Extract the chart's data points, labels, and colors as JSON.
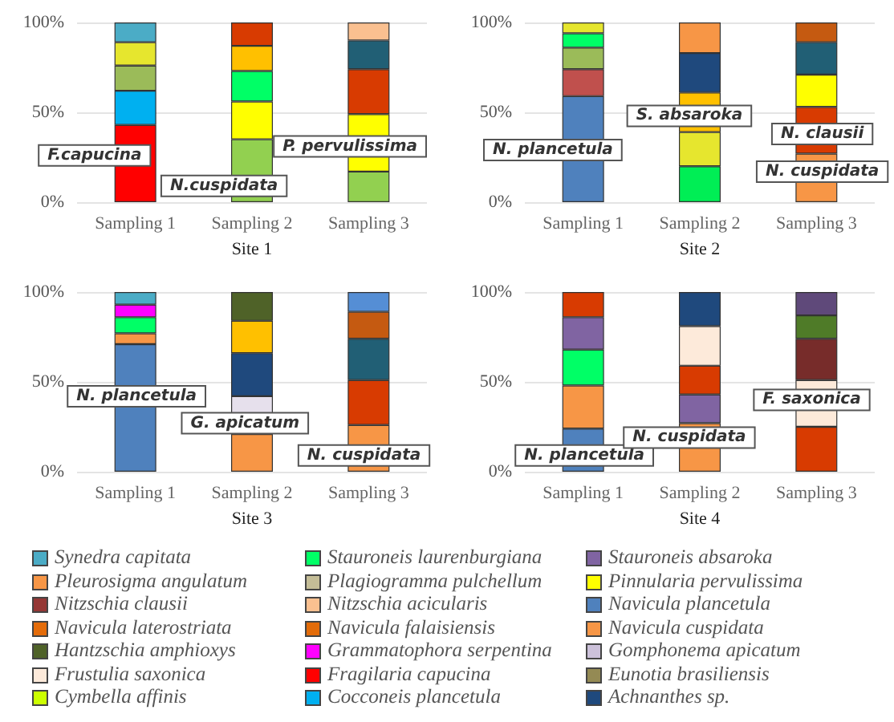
{
  "chart_data": [
    {
      "type": "bar",
      "stacked": true,
      "xlabel": "Site 1",
      "categories": [
        "Sampling 1",
        "Sampling 2",
        "Sampling 3"
      ],
      "ylim": [
        0,
        100
      ],
      "yticks": [
        {
          "value": 0,
          "label": "0%"
        },
        {
          "value": 50,
          "label": "50%"
        },
        {
          "value": 100,
          "label": "100%"
        }
      ],
      "grid": "y",
      "series": [
        {
          "colors": [
            "#ff0000",
            "#92d050",
            "#92d050"
          ],
          "values": [
            43,
            35,
            17
          ]
        },
        {
          "colors": [
            "#00b0f0",
            "#ffff00",
            "#ffff00"
          ],
          "values": [
            19,
            21,
            32
          ]
        },
        {
          "colors": [
            "#9bbb59",
            "#00ff66",
            "#d83b01"
          ],
          "values": [
            14,
            17,
            25
          ]
        },
        {
          "colors": [
            "#e6e62e",
            "#ffc000",
            "#215f75"
          ],
          "values": [
            13,
            14,
            16
          ]
        },
        {
          "colors": [
            "#4bacc6",
            "#d83b01",
            "#fac090"
          ],
          "values": [
            11,
            13,
            10
          ]
        }
      ],
      "annotations": [
        "F.capucina",
        "N.cuspidata",
        "P. pervulissima"
      ]
    },
    {
      "type": "bar",
      "stacked": true,
      "xlabel": "Site 2",
      "categories": [
        "Sampling 1",
        "Sampling 2",
        "Sampling 3"
      ],
      "ylim": [
        0,
        100
      ],
      "yticks": [
        {
          "value": 0,
          "label": "0%"
        },
        {
          "value": 50,
          "label": "50%"
        },
        {
          "value": 100,
          "label": "100%"
        }
      ],
      "grid": "y",
      "series": [
        {
          "colors": [
            "#4f81bd",
            "#00ee55",
            "#f79646"
          ],
          "values": [
            59,
            20,
            27
          ]
        },
        {
          "colors": [
            "#c0504d",
            "#e6e62e",
            "#d83b01"
          ],
          "values": [
            15,
            19,
            26
          ]
        },
        {
          "colors": [
            "#9bbb59",
            "#ffc000",
            "#ffff00"
          ],
          "values": [
            12,
            22,
            18
          ]
        },
        {
          "colors": [
            "#00ff66",
            "#1f497d",
            "#215f75"
          ],
          "values": [
            8,
            22,
            18
          ]
        },
        {
          "colors": [
            "#e6e62e",
            "#f79646",
            "#c55a11"
          ],
          "values": [
            6,
            17,
            11
          ]
        }
      ],
      "annotations": [
        "N. plancetula",
        "S. absaroka",
        "N. clausii",
        "N. cuspidata"
      ]
    },
    {
      "type": "bar",
      "stacked": true,
      "xlabel": "Site 3",
      "categories": [
        "Sampling 1",
        "Sampling 2",
        "Sampling 3"
      ],
      "ylim": [
        0,
        100
      ],
      "yticks": [
        {
          "value": 0,
          "label": "0%"
        },
        {
          "value": 50,
          "label": "50%"
        },
        {
          "value": 100,
          "label": "100%"
        }
      ],
      "grid": "y",
      "series": [
        {
          "colors": [
            "#4f81bd",
            "#f79646",
            "#f79646"
          ],
          "values": [
            71,
            21,
            26
          ]
        },
        {
          "colors": [
            "#f79646",
            "#e6e0ec",
            "#d83b01"
          ],
          "values": [
            6,
            21,
            25
          ]
        },
        {
          "colors": [
            "#00ff66",
            "#1f497d",
            "#215f75"
          ],
          "values": [
            9,
            24,
            23
          ]
        },
        {
          "colors": [
            "#ff00ff",
            "#ffc000",
            "#c55a11"
          ],
          "values": [
            7,
            18,
            15
          ]
        },
        {
          "colors": [
            "#4bacc6",
            "#4f6228",
            "#558ed5"
          ],
          "values": [
            7,
            16,
            11
          ]
        }
      ],
      "annotations": [
        "N. plancetula",
        "G. apicatum",
        "N. cuspidata"
      ]
    },
    {
      "type": "bar",
      "stacked": true,
      "xlabel": "Site 4",
      "categories": [
        "Sampling 1",
        "Sampling 2",
        "Sampling 3"
      ],
      "ylim": [
        0,
        100
      ],
      "yticks": [
        {
          "value": 0,
          "label": "0%"
        },
        {
          "value": 50,
          "label": "50%"
        },
        {
          "value": 100,
          "label": "100%"
        }
      ],
      "grid": "y",
      "series": [
        {
          "colors": [
            "#4f81bd",
            "#f79646",
            "#d83b01"
          ],
          "values": [
            24,
            27,
            25
          ]
        },
        {
          "colors": [
            "#f79646",
            "#8064a2",
            "#fdeada"
          ],
          "values": [
            24,
            16,
            26
          ]
        },
        {
          "colors": [
            "#00ff66",
            "#d83b01",
            "#772c2a"
          ],
          "values": [
            20,
            16,
            23
          ]
        },
        {
          "colors": [
            "#8064a2",
            "#fdeada",
            "#4f7b28"
          ],
          "values": [
            18,
            22,
            13
          ]
        },
        {
          "colors": [
            "#d83b01",
            "#1f497d",
            "#5f497a"
          ],
          "values": [
            14,
            19,
            13
          ]
        }
      ],
      "annotations": [
        "N. plancetula",
        "N. cuspidata",
        "F. saxonica"
      ]
    },
    {
      "type": "other",
      "categories": [
        "Synedra capitata",
        "Stauroneis laurenburgiana",
        "Stauroneis absaroka",
        "Pleurosigma angulatum",
        "Plagiogramma pulchellum",
        "Pinnularia pervulissima",
        "Nitzschia clausii",
        "Nitzschia acicularis",
        "Navicula plancetula",
        "Navicula laterostriata",
        "Navicula falaisiensis",
        "Navicula cuspidata",
        "Hantzschia amphioxys",
        "Grammatophora serpentina",
        "Gomphonema apicatum",
        "Frustulia saxonica",
        "Fragilaria capucina",
        "Eunotia brasiliensis",
        "Cymbella affinis",
        "Cocconeis plancetula",
        "Achnanthes sp."
      ],
      "colors": [
        "#4bacc6",
        "#00ff66",
        "#8064a2",
        "#f79646",
        "#c4bd97",
        "#ffff00",
        "#953735",
        "#fac090",
        "#4f81bd",
        "#e46c0a",
        "#e36c09",
        "#f79646",
        "#4f6228",
        "#ff00ff",
        "#ccc1da",
        "#fdeada",
        "#ff0000",
        "#948a54",
        "#ccff00",
        "#00b0f0",
        "#1f497d"
      ]
    }
  ]
}
